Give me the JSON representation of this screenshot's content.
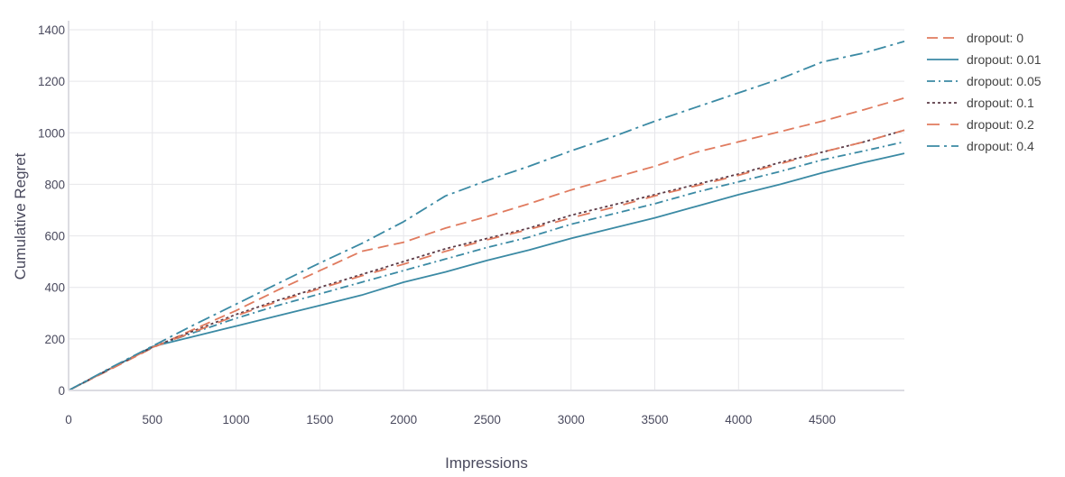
{
  "chart_data": {
    "type": "line",
    "xlabel": "Impressions",
    "ylabel": "Cumulative Regret",
    "xlim": [
      0,
      4990
    ],
    "ylim": [
      0,
      1400
    ],
    "x_ticks": [
      0,
      500,
      1000,
      1500,
      2000,
      2500,
      3000,
      3500,
      4000,
      4500
    ],
    "y_ticks": [
      0,
      200,
      400,
      600,
      800,
      1000,
      1200,
      1400
    ],
    "grid": true,
    "legend_position": "top-right",
    "x": [
      0,
      250,
      500,
      750,
      1000,
      1250,
      1500,
      1750,
      2000,
      2250,
      2500,
      2750,
      3000,
      3250,
      3500,
      3750,
      4000,
      4250,
      4500,
      4750,
      4990
    ],
    "series": [
      {
        "name": "dropout: 0",
        "color": "#e07b5f",
        "dash": "long-dash",
        "values": [
          0,
          82,
          165,
          238,
          310,
          390,
          465,
          540,
          575,
          630,
          675,
          725,
          778,
          825,
          870,
          925,
          965,
          1005,
          1045,
          1090,
          1135
        ]
      },
      {
        "name": "dropout: 0.01",
        "color": "#3b8aa4",
        "dash": "solid",
        "values": [
          0,
          85,
          170,
          210,
          250,
          290,
          330,
          370,
          420,
          460,
          505,
          545,
          590,
          630,
          670,
          715,
          760,
          800,
          845,
          885,
          920
        ]
      },
      {
        "name": "dropout: 0.05",
        "color": "#3b8aa4",
        "dash": "dash-dot",
        "values": [
          0,
          85,
          168,
          225,
          280,
          330,
          375,
          420,
          465,
          510,
          555,
          595,
          645,
          685,
          725,
          770,
          810,
          850,
          895,
          930,
          965
        ]
      },
      {
        "name": "dropout: 0.1",
        "color": "#5c3b47",
        "dash": "dotted",
        "values": [
          0,
          85,
          168,
          232,
          295,
          350,
          400,
          450,
          500,
          550,
          590,
          630,
          680,
          720,
          760,
          800,
          840,
          885,
          925,
          965,
          1010
        ]
      },
      {
        "name": "dropout: 0.2",
        "color": "#e07b5f",
        "dash": "long-dash-sparse",
        "values": [
          0,
          84,
          167,
          228,
          290,
          345,
          395,
          445,
          490,
          540,
          585,
          625,
          670,
          710,
          755,
          795,
          835,
          880,
          925,
          965,
          1010
        ]
      },
      {
        "name": "dropout: 0.4",
        "color": "#3b8aa4",
        "dash": "long-dash-dot",
        "values": [
          0,
          88,
          172,
          255,
          335,
          415,
          495,
          570,
          655,
          755,
          815,
          870,
          930,
          985,
          1045,
          1100,
          1155,
          1210,
          1275,
          1310,
          1355
        ]
      }
    ]
  }
}
